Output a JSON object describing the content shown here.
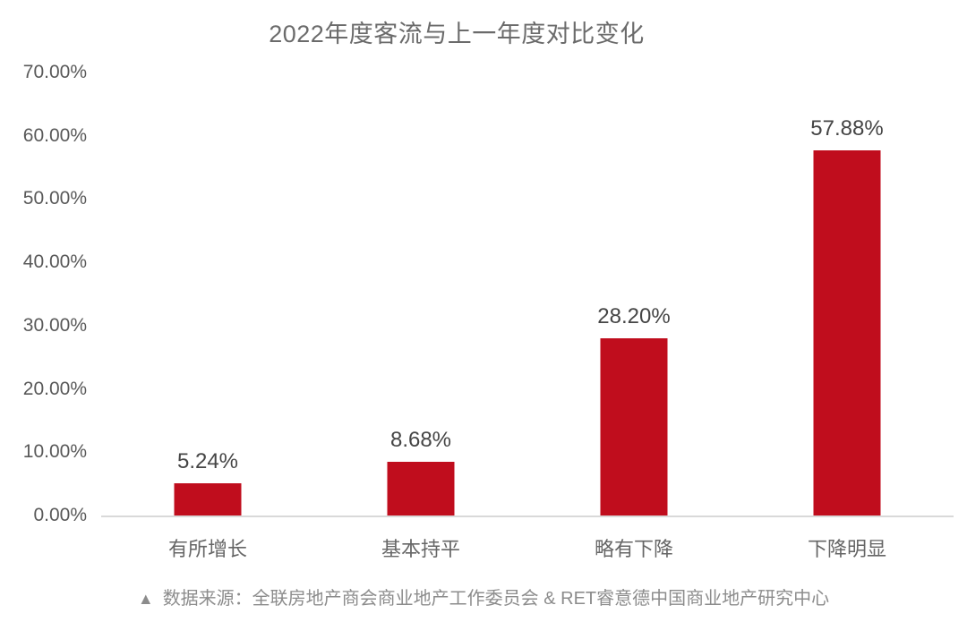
{
  "title": "2022年度客流与上一年度对比变化",
  "footer": {
    "marker": "▲",
    "text": "数据来源：全联房地产商会商业地产工作委员会 & RET睿意德中国商业地产研究中心"
  },
  "colors": {
    "bar": "#c00d1d",
    "axis_line": "#d9d9d9",
    "title_text": "#6b6b6b",
    "tick_text": "#595959",
    "category_text": "#666666",
    "value_text": "#454545",
    "footer_text": "#8c8c8c",
    "background": "#ffffff"
  },
  "chart_data": {
    "type": "bar",
    "title": "2022年度客流与上一年度对比变化",
    "categories": [
      "有所增长",
      "基本持平",
      "略有下降",
      "下降明显"
    ],
    "values": [
      5.24,
      8.68,
      28.2,
      57.88
    ],
    "value_labels": [
      "5.24%",
      "8.68%",
      "28.20%",
      "57.88%"
    ],
    "xlabel": "",
    "ylabel": "",
    "ylim": [
      0,
      70
    ],
    "ytick_interval": 10,
    "ytick_labels": [
      "0.00%",
      "10.00%",
      "20.00%",
      "30.00%",
      "40.00%",
      "50.00%",
      "60.00%",
      "70.00%"
    ],
    "grid": false,
    "legend": "none",
    "bar_color": "#c00d1d"
  }
}
